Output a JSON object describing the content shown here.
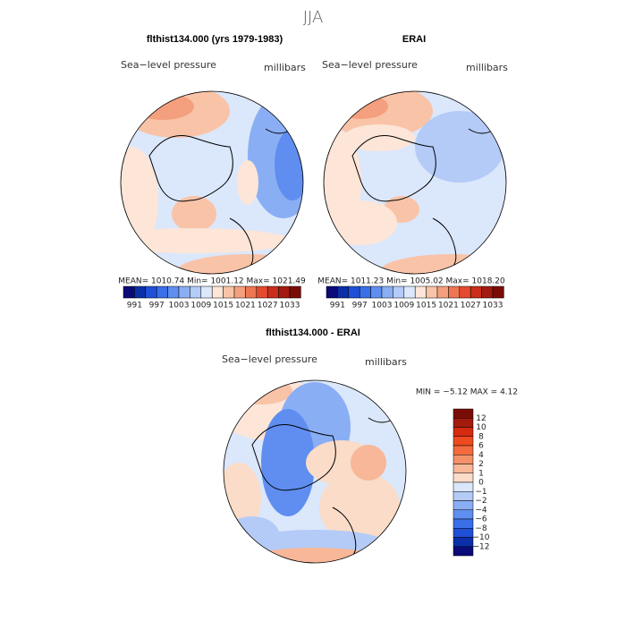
{
  "title": "JJA",
  "panels": [
    {
      "title": "flthist134.000 (yrs 1979-1983)",
      "left_label": "Sea−level pressure",
      "right_label": "millibars",
      "stats": "MEAN= 1010.74   Min= 1001.12   Max= 1021.49",
      "colorbar": {
        "labels": [
          "991",
          "997",
          "1003",
          "1009",
          "1015",
          "1021",
          "1027",
          "1033"
        ],
        "colors": [
          "#0a0a78",
          "#0b2fa8",
          "#1f4fd6",
          "#3a6fe8",
          "#5f8ef0",
          "#8aaef4",
          "#b4cbf7",
          "#dbe7fb",
          "#fde5d8",
          "#f9c3a8",
          "#f49f7d",
          "#ee7653",
          "#e44a2f",
          "#c92e1a",
          "#a31a0f",
          "#7a0c06"
        ]
      }
    },
    {
      "title": "ERAI",
      "left_label": "Sea−level pressure",
      "right_label": "millibars",
      "stats": "MEAN= 1011.23   Min= 1005.02   Max= 1018.20",
      "colorbar": {
        "labels": [
          "991",
          "997",
          "1003",
          "1009",
          "1015",
          "1021",
          "1027",
          "1033"
        ],
        "colors": [
          "#0a0a78",
          "#0b2fa8",
          "#1f4fd6",
          "#3a6fe8",
          "#5f8ef0",
          "#8aaef4",
          "#b4cbf7",
          "#dbe7fb",
          "#fde5d8",
          "#f9c3a8",
          "#f49f7d",
          "#ee7653",
          "#e44a2f",
          "#c92e1a",
          "#a31a0f",
          "#7a0c06"
        ]
      }
    },
    {
      "title": "flthist134.000 - ERAI",
      "left_label": "Sea−level pressure",
      "right_label": "millibars",
      "stats": "MIN =   −5.12 MAX =    4.12",
      "colorbar": {
        "labels": [
          "12",
          "10",
          "8",
          "6",
          "4",
          "2",
          "1",
          "0",
          "−1",
          "−2",
          "−4",
          "−6",
          "−8",
          "−10",
          "−12"
        ],
        "colors": [
          "#7a0c06",
          "#a31a0f",
          "#d42a10",
          "#ee4a1f",
          "#f26a3d",
          "#f4916a",
          "#f7b798",
          "#fadcc8",
          "#dbe7fb",
          "#b4cbf7",
          "#8aaef4",
          "#5f8ef0",
          "#3a6fe8",
          "#1f4fd6",
          "#0b2fa8",
          "#0a0a78"
        ]
      }
    }
  ]
}
